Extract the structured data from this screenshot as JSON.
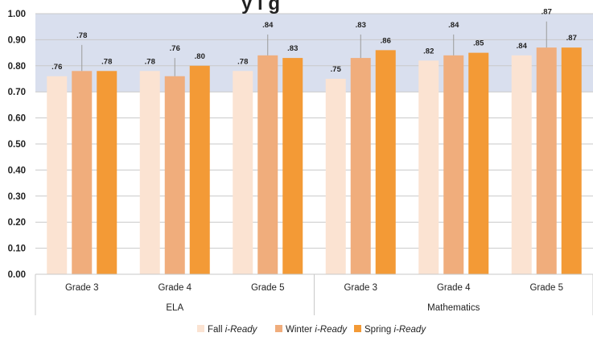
{
  "title_fragment": "y i g",
  "chart_data": {
    "type": "bar",
    "groups": [
      {
        "name": "ELA",
        "categories": [
          "Grade 3",
          "Grade 4",
          "Grade 5"
        ]
      },
      {
        "name": "Mathematics",
        "categories": [
          "Grade 3",
          "Grade 4",
          "Grade 5"
        ]
      }
    ],
    "series": [
      {
        "name": "Fall",
        "name_suffix": "i-Ready",
        "color": "#fbe3d2",
        "values": [
          0.76,
          0.78,
          0.78,
          0.75,
          0.82,
          0.84
        ],
        "labels": [
          ".76",
          ".78",
          ".78",
          ".75",
          ".82",
          ".84"
        ]
      },
      {
        "name": "Winter",
        "name_suffix": "i-Ready",
        "color": "#f0ad7c",
        "values": [
          0.78,
          0.76,
          0.84,
          0.83,
          0.84,
          0.87
        ],
        "labels": [
          ".78",
          ".76",
          ".84",
          ".83",
          ".84",
          ".87"
        ],
        "error_bar_top": [
          0.88,
          0.83,
          0.92,
          0.92,
          0.92,
          0.97
        ]
      },
      {
        "name": "Spring",
        "name_suffix": "i-Ready",
        "color": "#f39a36",
        "values": [
          0.78,
          0.8,
          0.83,
          0.86,
          0.85,
          0.87
        ],
        "labels": [
          ".78",
          ".80",
          ".83",
          ".86",
          ".85",
          ".87"
        ]
      }
    ],
    "ylim": [
      0,
      1.0
    ],
    "yticks": [
      "0.00",
      "0.10",
      "0.20",
      "0.30",
      "0.40",
      "0.50",
      "0.60",
      "0.70",
      "0.80",
      "0.90",
      "1.00"
    ],
    "shaded_band": {
      "from": 0.7,
      "to": 1.0,
      "color": "#d9dfee"
    },
    "grid": true,
    "legend_position": "bottom"
  }
}
